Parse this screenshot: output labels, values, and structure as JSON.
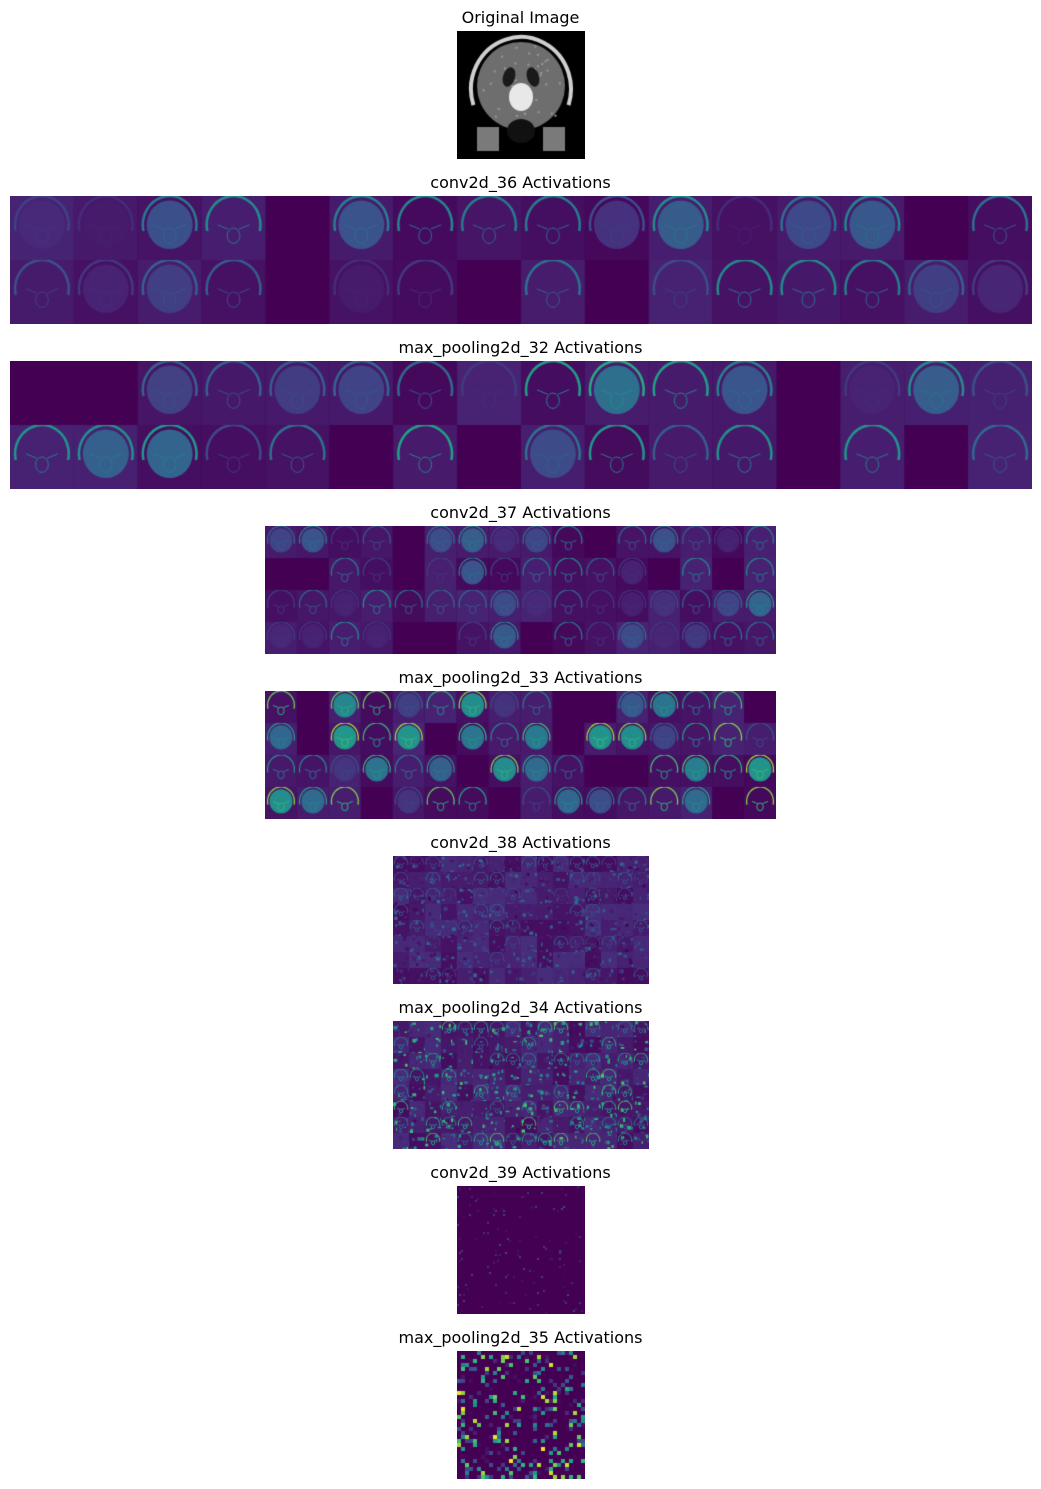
{
  "figure": {
    "panels": [
      {
        "key": "original",
        "title": "Original Image",
        "kind": "mri",
        "grid": [
          1,
          1
        ]
      },
      {
        "key": "conv2d_36",
        "title": "conv2d_36 Activations",
        "kind": "activation",
        "grid": [
          2,
          16
        ],
        "intensity": 0.3
      },
      {
        "key": "max_pooling2d_32",
        "title": "max_pooling2d_32 Activations",
        "kind": "activation",
        "grid": [
          2,
          16
        ],
        "intensity": 0.38
      },
      {
        "key": "conv2d_37",
        "title": "conv2d_37 Activations",
        "kind": "activation",
        "grid": [
          4,
          16
        ],
        "intensity": 0.35
      },
      {
        "key": "max_pooling2d_33",
        "title": "max_pooling2d_33 Activations",
        "kind": "activation",
        "grid": [
          4,
          16
        ],
        "intensity": 0.55
      },
      {
        "key": "conv2d_38",
        "title": "conv2d_38 Activations",
        "kind": "sparse",
        "grid": [
          8,
          16
        ],
        "intensity": 0.35
      },
      {
        "key": "max_pooling2d_34",
        "title": "max_pooling2d_34 Activations",
        "kind": "sparse",
        "grid": [
          8,
          16
        ],
        "intensity": 0.75
      },
      {
        "key": "conv2d_39",
        "title": "conv2d_39 Activations",
        "kind": "noise",
        "grid": [
          1,
          1
        ],
        "intensity": 0.15
      },
      {
        "key": "max_pooling2d_35",
        "title": "max_pooling2d_35 Activations",
        "kind": "blocks",
        "grid": [
          1,
          1
        ],
        "intensity": 0.7
      }
    ],
    "colormap": "viridis"
  }
}
